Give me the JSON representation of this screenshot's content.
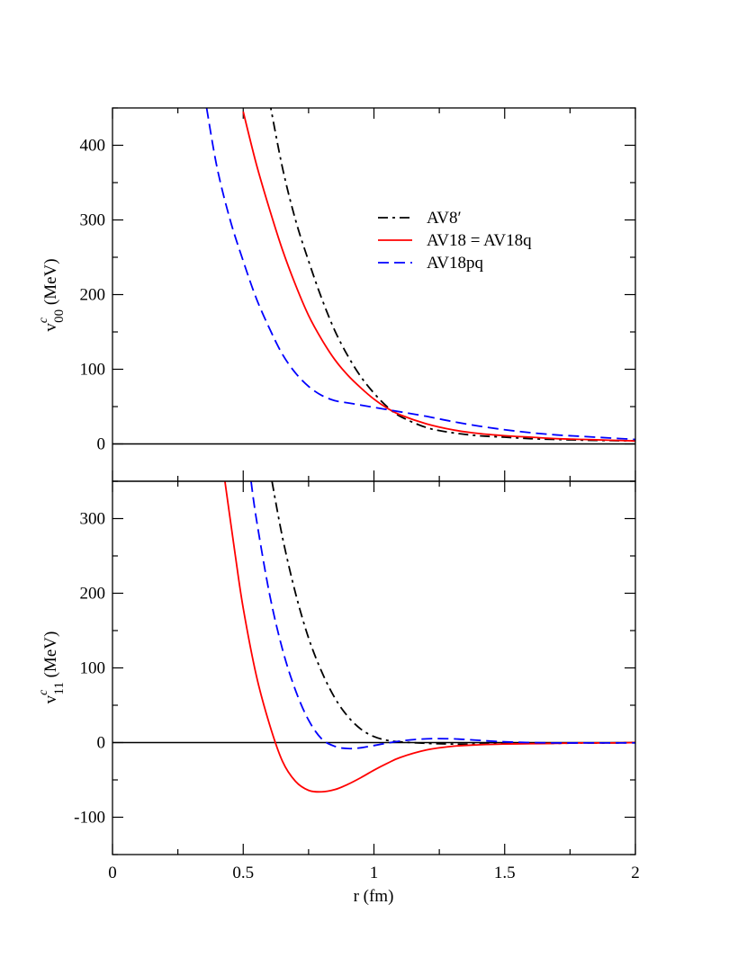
{
  "chart_data": [
    {
      "type": "line",
      "panel": "top",
      "title": "",
      "xlabel": "",
      "ylabel": {
        "main": "v",
        "sup": "c",
        "sub": "00",
        "units": " (MeV)"
      },
      "xlim": [
        0,
        2
      ],
      "ylim": [
        -50,
        450
      ],
      "yticks": [
        0,
        100,
        200,
        300,
        400
      ],
      "ytick_labels": [
        "0",
        "100",
        "200",
        "300",
        "400"
      ],
      "reference_line": 0,
      "legend": {
        "placement": "upper-right",
        "entries": [
          {
            "label": "AV8′",
            "series": "AV8p"
          },
          {
            "label": "AV18 = AV18q",
            "series": "AV18"
          },
          {
            "label": "AV18pq",
            "series": "AV18pq"
          }
        ]
      },
      "series": [
        {
          "name": "AV8p",
          "color": "#000000",
          "dash": "dashdot",
          "x": [
            0.6,
            0.65,
            0.7,
            0.75,
            0.8,
            0.85,
            0.9,
            0.95,
            1.0,
            1.05,
            1.1,
            1.2,
            1.3,
            1.4,
            1.5,
            1.6,
            1.7,
            1.8,
            1.9,
            2.0
          ],
          "y": [
            460,
            370,
            300,
            245,
            195,
            152,
            118,
            90,
            68,
            50,
            37,
            22,
            15,
            11,
            9,
            7,
            6,
            5,
            4.5,
            4
          ]
        },
        {
          "name": "AV18",
          "color": "#ff0000",
          "dash": "solid",
          "x": [
            0.5,
            0.55,
            0.6,
            0.65,
            0.7,
            0.75,
            0.8,
            0.85,
            0.9,
            0.95,
            1.0,
            1.05,
            1.1,
            1.2,
            1.3,
            1.4,
            1.5,
            1.6,
            1.7,
            1.8,
            1.9,
            2.0
          ],
          "y": [
            445,
            375,
            315,
            260,
            213,
            172,
            140,
            113,
            92,
            75,
            60,
            48,
            39,
            27,
            19,
            14,
            11,
            9,
            7,
            6,
            5,
            4
          ]
        },
        {
          "name": "AV18pq",
          "color": "#0000ff",
          "dash": "dashed",
          "x": [
            0.36,
            0.4,
            0.45,
            0.5,
            0.55,
            0.6,
            0.65,
            0.7,
            0.75,
            0.8,
            0.85,
            0.9,
            0.95,
            1.0,
            1.05,
            1.1,
            1.2,
            1.3,
            1.4,
            1.5,
            1.6,
            1.7,
            1.8,
            1.9,
            2.0
          ],
          "y": [
            450,
            370,
            300,
            245,
            195,
            155,
            120,
            95,
            77,
            65,
            58,
            55,
            52,
            49,
            46,
            43,
            37,
            30,
            24,
            19,
            15,
            12,
            10,
            8,
            6
          ]
        }
      ]
    },
    {
      "type": "line",
      "panel": "bottom",
      "title": "",
      "xlabel": "r (fm)",
      "ylabel": {
        "main": "v",
        "sup": "c",
        "sub": "11",
        "units": " (MeV)"
      },
      "xlim": [
        0,
        2
      ],
      "ylim": [
        -150,
        350
      ],
      "xticks": [
        0,
        0.5,
        1,
        1.5,
        2
      ],
      "xtick_labels": [
        "0",
        "0.5",
        "1",
        "1.5",
        "2"
      ],
      "yticks": [
        -100,
        0,
        100,
        200,
        300
      ],
      "ytick_labels": [
        "-100",
        "0",
        "100",
        "200",
        "300"
      ],
      "reference_line": 0,
      "series": [
        {
          "name": "AV8p",
          "color": "#000000",
          "dash": "dashdot",
          "x": [
            0.61,
            0.65,
            0.7,
            0.75,
            0.8,
            0.85,
            0.9,
            0.95,
            1.0,
            1.05,
            1.1,
            1.2,
            1.3,
            1.4,
            1.5,
            1.6,
            1.7,
            1.8,
            1.9,
            2.0
          ],
          "y": [
            350,
            275,
            200,
            140,
            95,
            60,
            35,
            18,
            8,
            3,
            1,
            -1,
            -2,
            -2,
            -1.5,
            -1,
            -1,
            -0.5,
            -0.5,
            0
          ]
        },
        {
          "name": "AV18",
          "color": "#ff0000",
          "dash": "solid",
          "x": [
            0.43,
            0.47,
            0.5,
            0.55,
            0.6,
            0.65,
            0.7,
            0.75,
            0.8,
            0.85,
            0.9,
            0.95,
            1.0,
            1.05,
            1.1,
            1.2,
            1.3,
            1.4,
            1.5,
            1.6,
            1.7,
            1.8,
            1.9,
            2.0
          ],
          "y": [
            350,
            250,
            180,
            90,
            25,
            -25,
            -52,
            -64,
            -66,
            -63,
            -56,
            -47,
            -37,
            -28,
            -20,
            -10,
            -5,
            -3,
            -2,
            -1.5,
            -1,
            -0.5,
            -0.5,
            0
          ]
        },
        {
          "name": "AV18pq",
          "color": "#0000ff",
          "dash": "dashed",
          "x": [
            0.53,
            0.55,
            0.6,
            0.65,
            0.7,
            0.75,
            0.8,
            0.85,
            0.9,
            0.95,
            1.0,
            1.1,
            1.2,
            1.3,
            1.4,
            1.5,
            1.6,
            1.7,
            1.8,
            1.9,
            2.0
          ],
          "y": [
            350,
            300,
            200,
            125,
            70,
            30,
            5,
            -5,
            -8,
            -7,
            -4,
            2,
            5,
            5,
            3,
            1,
            0,
            -0.5,
            -0.5,
            -0.5,
            -0.5
          ]
        }
      ]
    }
  ]
}
